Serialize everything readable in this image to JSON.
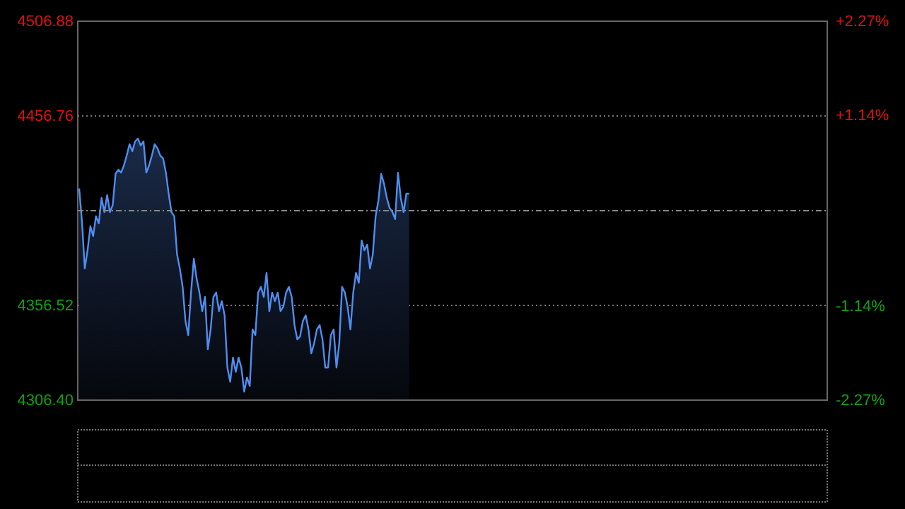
{
  "chart_data": {
    "type": "area",
    "ylim": [
      4306.4,
      4506.88
    ],
    "categories": [
      null,
      null,
      null,
      null,
      null,
      null,
      null,
      null,
      null,
      null,
      null,
      null,
      null,
      null,
      null,
      null,
      null,
      null,
      null,
      null,
      null,
      null,
      null,
      null,
      null,
      null,
      null,
      null,
      null,
      null,
      null,
      null,
      null,
      null,
      null,
      null,
      null,
      null,
      null,
      null,
      null,
      null,
      null,
      null,
      null,
      null,
      null,
      null,
      null,
      null,
      null,
      null,
      null,
      null,
      null,
      null,
      null,
      null,
      null,
      null,
      null,
      null,
      null,
      null,
      null,
      null,
      null,
      null,
      null,
      null,
      null,
      null,
      null,
      null,
      null,
      null,
      null,
      null,
      null,
      null,
      null,
      null,
      null,
      null,
      null,
      null,
      null,
      null,
      null,
      null,
      null,
      null,
      null,
      null,
      null,
      null,
      null,
      null,
      null,
      null,
      null,
      null,
      null,
      null,
      null,
      null,
      null,
      null,
      null,
      null,
      null,
      null,
      null,
      null,
      null,
      null,
      null,
      null,
      null,
      null,
      null,
      null,
      null,
      null,
      null,
      null,
      null,
      null,
      null,
      null,
      null,
      null,
      null,
      null,
      null,
      null,
      null,
      null,
      null,
      null,
      null,
      null,
      null,
      null,
      null,
      null,
      null,
      null,
      null,
      null,
      null,
      null,
      null,
      null,
      null,
      null,
      null,
      null,
      null,
      null,
      null,
      null,
      null,
      null,
      null,
      null,
      null,
      null,
      null,
      null,
      null,
      null,
      null,
      null,
      null,
      null,
      null,
      null,
      null,
      null,
      null,
      null,
      null,
      null,
      null,
      null,
      null,
      null,
      null,
      null,
      null,
      null,
      null,
      null,
      null,
      null,
      null,
      null,
      null,
      null,
      null,
      null,
      null,
      null,
      null,
      null,
      null,
      null,
      null,
      null,
      null,
      null,
      null,
      null,
      null,
      null,
      null,
      null,
      null,
      null,
      null,
      null,
      null,
      null,
      null,
      null,
      null,
      null,
      null,
      null,
      null,
      null,
      null,
      null,
      null,
      null,
      null,
      null,
      null,
      null,
      null,
      null,
      null,
      null,
      null,
      null,
      null,
      null,
      null,
      null,
      null,
      null,
      null,
      null,
      null,
      null,
      null,
      null,
      null,
      null,
      null,
      null,
      null,
      null,
      null,
      null,
      null,
      null
    ],
    "yticks": [
      {
        "value": 4306.4,
        "label": "4306.40"
      },
      4356.52,
      4456.76,
      4506.88
    ],
    "y2lim": [
      -2.27,
      2.27
    ],
    "y2ticks": [
      {
        "value": -2.27,
        "label": "-2.27%"
      },
      {
        "value": -1.14,
        "label": "-1.14%"
      },
      {
        "value": 1.14,
        "label": "+1.14%"
      },
      {
        "value": 2.27,
        "label": "+2.27%"
      }
    ],
    "grid": "y",
    "ref_lines": [
      {
        "axis": "y",
        "value": 4406.64,
        "color": "#888888",
        "line_style": "dashed"
      }
    ],
    "series": [
      {
        "color": "#4f8ef0",
        "values": [
          4418.4,
          4400.7,
          4376.0,
          4385.7,
          4398.4,
          4393.2,
          4403.7,
          4399.9,
          4413.4,
          4405.9,
          4414.9,
          4405.9,
          4409.7,
          4426.1,
          4428.3,
          4426.8,
          4430.6,
          4435.8,
          4441.8,
          4438.1,
          4443.3,
          4444.8,
          4441.1,
          4443.3,
          4426.8,
          4430.6,
          4435.8,
          4441.8,
          4439.6,
          4435.8,
          4434.3,
          4426.8,
          4415.6,
          4405.9,
          4403.7,
          4383.5,
          4376.0,
          4366.3,
          4348.3,
          4340.8,
          4363.3,
          4381.2,
          4370.7,
          4363.3,
          4353.5,
          4361.0,
          4333.3,
          4343.8,
          4361.0,
          4363.3,
          4353.5,
          4358.8,
          4351.3,
          4323.6,
          4316.1,
          4328.9,
          4321.4,
          4328.9,
          4323.6,
          4310.9,
          4318.4,
          4313.9,
          4343.8,
          4340.8,
          4363.3,
          4366.3,
          4361.0,
          4373.7,
          4353.5,
          4363.3,
          4358.8,
          4363.3,
          4353.5,
          4355.8,
          4363.3,
          4366.3,
          4361.0,
          4346.1,
          4338.6,
          4340.1,
          4348.3,
          4351.3,
          4343.8,
          4331.1,
          4336.3,
          4343.8,
          4346.1,
          4338.6,
          4323.6,
          4323.6,
          4340.8,
          4343.8,
          4323.6,
          4336.3,
          4366.3,
          4363.3,
          4355.8,
          4343.8,
          4363.3,
          4373.7,
          4368.5,
          4390.9,
          4385.7,
          4388.7,
          4376.0,
          4383.5,
          4403.7,
          4411.9,
          4426.1,
          4420.9,
          4413.4,
          4408.1,
          4405.9,
          4402.2,
          4426.8,
          4413.4,
          4405.9,
          4415.6,
          4415.6,
          null,
          null,
          null,
          null,
          null,
          null,
          null,
          null,
          null,
          null,
          null,
          null,
          null,
          null,
          null,
          null,
          null,
          null,
          null,
          null,
          null,
          null,
          null,
          null,
          null,
          null,
          null,
          null,
          null,
          null,
          null,
          null,
          null,
          null,
          null,
          null,
          null,
          null,
          null,
          null,
          null,
          null,
          null,
          null,
          null,
          null,
          null,
          null,
          null,
          null,
          null,
          null,
          null,
          null,
          null,
          null,
          null,
          null,
          null,
          null,
          null,
          null,
          null,
          null,
          null,
          null,
          null,
          null,
          null,
          null,
          null,
          null,
          null,
          null,
          null,
          null,
          null,
          null,
          null,
          null,
          null,
          null,
          null,
          null,
          null,
          null,
          null,
          null,
          null,
          null,
          null,
          null,
          null,
          null,
          null,
          null,
          null,
          null,
          null,
          null,
          null,
          null,
          null,
          null,
          null,
          null,
          null,
          null,
          null,
          null,
          null,
          null,
          null,
          null,
          null,
          null,
          null,
          null,
          null,
          null,
          null,
          null,
          null,
          null,
          null,
          null,
          null,
          null,
          null,
          null,
          null,
          null,
          null,
          null,
          null,
          null,
          null,
          null,
          null,
          null,
          null,
          null,
          null,
          null,
          null,
          null,
          null,
          null,
          null
        ]
      }
    ]
  }
}
